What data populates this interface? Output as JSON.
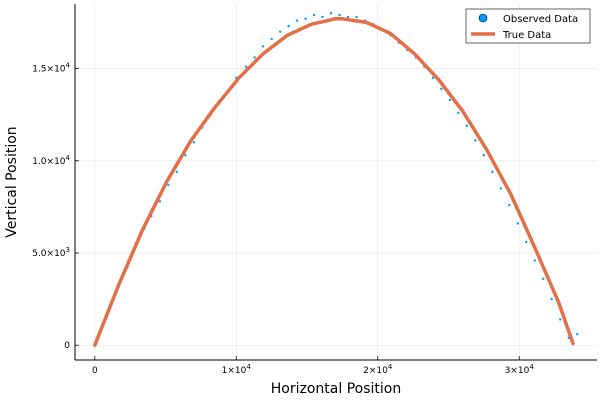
{
  "chart_data": {
    "type": "scatter",
    "xlabel": "Horizontal Position",
    "ylabel": "Vertical Position",
    "xlim": [
      -1400,
      35500
    ],
    "ylim": [
      -800,
      18500
    ],
    "grid": true,
    "legend_position": "top-right",
    "x_ticks": [
      {
        "value": 0,
        "base": "0",
        "exp": ""
      },
      {
        "value": 10000,
        "base": "1×10",
        "exp": "4"
      },
      {
        "value": 20000,
        "base": "2×10",
        "exp": "4"
      },
      {
        "value": 30000,
        "base": "3×10",
        "exp": "4"
      }
    ],
    "y_ticks": [
      {
        "value": 0,
        "base": "0",
        "exp": ""
      },
      {
        "value": 5000,
        "base": "5.0×10",
        "exp": "3"
      },
      {
        "value": 10000,
        "base": "1.0×10",
        "exp": "4"
      },
      {
        "value": 15000,
        "base": "1.5×10",
        "exp": "4"
      }
    ],
    "series": [
      {
        "name": "Observed Data",
        "kind": "scatter",
        "color": "#009AFA",
        "points": [
          [
            0,
            120
          ],
          [
            700,
            1400
          ],
          [
            1200,
            2300
          ],
          [
            1700,
            3300
          ],
          [
            2300,
            4200
          ],
          [
            2900,
            5300
          ],
          [
            3500,
            6300
          ],
          [
            4000,
            7000
          ],
          [
            4600,
            7800
          ],
          [
            5200,
            8700
          ],
          [
            5800,
            9400
          ],
          [
            6400,
            10300
          ],
          [
            7000,
            11000
          ],
          [
            7600,
            11800
          ],
          [
            8200,
            12500
          ],
          [
            8800,
            13100
          ],
          [
            9400,
            13800
          ],
          [
            10000,
            14500
          ],
          [
            10700,
            15100
          ],
          [
            11300,
            15600
          ],
          [
            11900,
            16200
          ],
          [
            12500,
            16600
          ],
          [
            13100,
            17000
          ],
          [
            13700,
            17300
          ],
          [
            14300,
            17600
          ],
          [
            14900,
            17700
          ],
          [
            15500,
            17900
          ],
          [
            16100,
            17800
          ],
          [
            16700,
            18000
          ],
          [
            17300,
            17900
          ],
          [
            17900,
            17800
          ],
          [
            18500,
            17800
          ],
          [
            19100,
            17600
          ],
          [
            19700,
            17400
          ],
          [
            20300,
            17100
          ],
          [
            20900,
            16800
          ],
          [
            21500,
            16400
          ],
          [
            22100,
            16000
          ],
          [
            22700,
            15600
          ],
          [
            23300,
            15100
          ],
          [
            23900,
            14500
          ],
          [
            24500,
            13900
          ],
          [
            25100,
            13300
          ],
          [
            25700,
            12600
          ],
          [
            26300,
            11900
          ],
          [
            26900,
            11100
          ],
          [
            27500,
            10300
          ],
          [
            28100,
            9400
          ],
          [
            28700,
            8500
          ],
          [
            29300,
            7600
          ],
          [
            29900,
            6600
          ],
          [
            30500,
            5600
          ],
          [
            31100,
            4600
          ],
          [
            31700,
            3600
          ],
          [
            32300,
            2500
          ],
          [
            32900,
            1400
          ],
          [
            33500,
            400
          ],
          [
            34100,
            600
          ]
        ]
      },
      {
        "name": "True Data",
        "kind": "line",
        "color": "#E26F46",
        "points": [
          [
            0,
            0
          ],
          [
            1700,
            3300
          ],
          [
            3400,
            6300
          ],
          [
            5100,
            8900
          ],
          [
            6800,
            11100
          ],
          [
            8500,
            12900
          ],
          [
            10200,
            14500
          ],
          [
            11900,
            15800
          ],
          [
            13600,
            16800
          ],
          [
            15300,
            17400
          ],
          [
            17000,
            17700
          ],
          [
            17500,
            17700
          ],
          [
            19200,
            17500
          ],
          [
            20900,
            16900
          ],
          [
            22600,
            15800
          ],
          [
            24300,
            14400
          ],
          [
            26000,
            12700
          ],
          [
            27700,
            10600
          ],
          [
            29400,
            8200
          ],
          [
            31100,
            5300
          ],
          [
            32800,
            2300
          ],
          [
            33800,
            100
          ]
        ]
      }
    ]
  }
}
